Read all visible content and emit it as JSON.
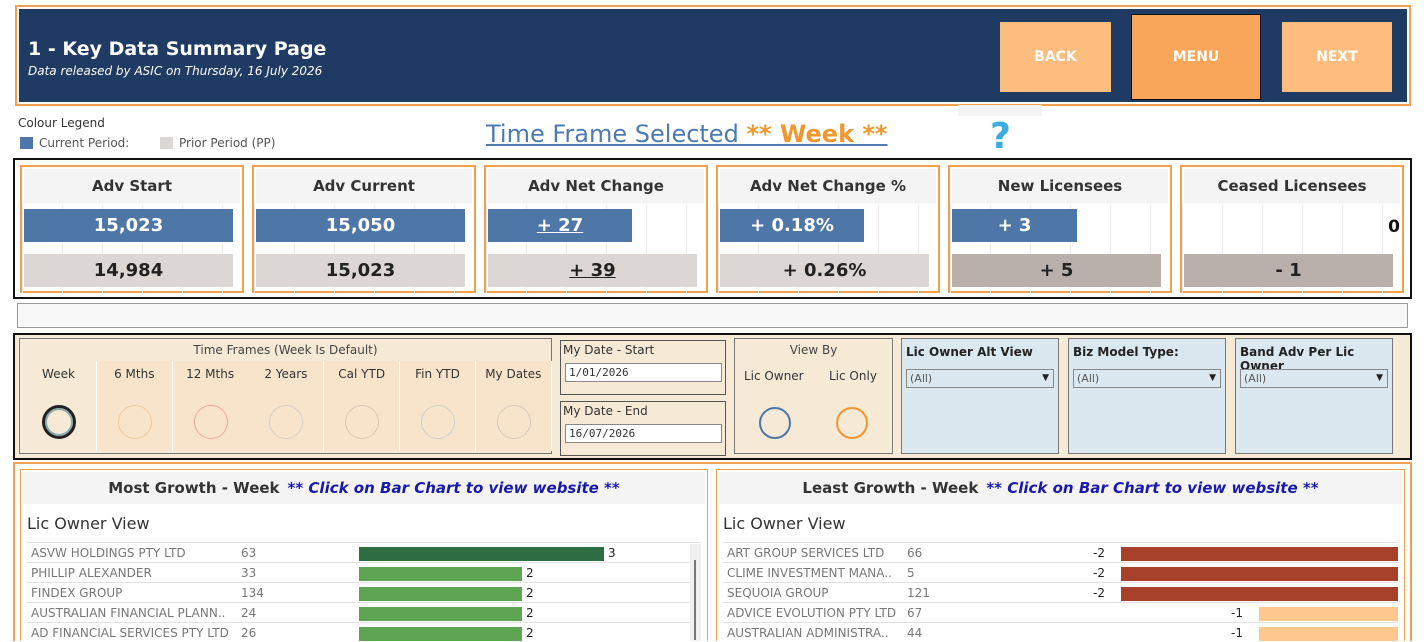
{
  "header": {
    "title": "1 - Key Data Summary Page",
    "subtitle": "Data released by ASIC on Thursday, 16 July 2026",
    "back_label": "BACK",
    "menu_label": "MENU",
    "next_label": "NEXT"
  },
  "legend": {
    "title": "Colour Legend",
    "current_label": "Current Period:",
    "prior_label": "Prior Period (PP)",
    "current_color": "#4e77a8",
    "prior_color": "#dcd6d4"
  },
  "timeframe": {
    "prefix": "Time Frame Selected ",
    "value": "** Week **",
    "help": "?"
  },
  "kpis": [
    {
      "title": "Adv Start",
      "current": "15,023",
      "prior": "14,984",
      "current_fill": 1.0
    },
    {
      "title": "Adv Current",
      "current": "15,050",
      "prior": "15,023",
      "current_fill": 1.0
    },
    {
      "title": "Adv Net Change",
      "current": "+ 27",
      "prior": "+ 39",
      "current_fill": 0.69
    },
    {
      "title": "Adv Net Change %",
      "current": "+ 0.18%",
      "prior": "+ 0.26%",
      "current_fill": 0.69
    },
    {
      "title": "New Licensees",
      "current": "+ 3",
      "prior": "+ 5",
      "current_fill": 0.6
    },
    {
      "title": "Ceased Licensees",
      "current": "0",
      "prior": "- 1",
      "current_fill": 0
    }
  ],
  "filters": {
    "timeframes_title": "Time Frames (Week Is Default)",
    "timeframes": [
      "Week",
      "6 Mths",
      "12 Mths",
      "2 Years",
      "Cal YTD",
      "Fin YTD",
      "My Dates"
    ],
    "date_start_label": "My Date - Start",
    "date_start_value": "1/01/2026",
    "date_end_label": "My Date - End",
    "date_end_value": "16/07/2026",
    "view_by_title": "View By",
    "view_by_options": [
      "Lic Owner",
      "Lic Only"
    ],
    "dropdowns": [
      {
        "label": "Lic Owner Alt View",
        "value": "(All)"
      },
      {
        "label": "Biz Model Type:",
        "value": "(All)"
      },
      {
        "label": "Band Adv Per Lic Owner",
        "value": "(All)"
      }
    ]
  },
  "most_growth": {
    "title": "Most Growth - Week",
    "hint": "** Click on Bar Chart to view website **",
    "view_label": "Lic Owner View",
    "rows": [
      {
        "name": "ASVW HOLDINGS PTY LTD",
        "count": "63",
        "value": 3
      },
      {
        "name": "PHILLIP  ALEXANDER",
        "count": "33",
        "value": 2
      },
      {
        "name": "FINDEX GROUP",
        "count": "134",
        "value": 2
      },
      {
        "name": "AUSTRALIAN FINANCIAL PLANN..",
        "count": "24",
        "value": 2
      },
      {
        "name": "AD FINANCIAL SERVICES PTY LTD",
        "count": "26",
        "value": 2
      }
    ]
  },
  "least_growth": {
    "title": "Least Growth - Week",
    "hint": "** Click on Bar Chart to view website **",
    "view_label": "Lic Owner View",
    "rows": [
      {
        "name": "ART GROUP SERVICES LTD",
        "count": "66",
        "value": -2
      },
      {
        "name": "CLIME INVESTMENT MANA..",
        "count": "5",
        "value": -2
      },
      {
        "name": "SEQUOIA GROUP",
        "count": "121",
        "value": -2
      },
      {
        "name": "ADVICE EVOLUTION PTY LTD",
        "count": "67",
        "value": -1
      },
      {
        "name": "AUSTRALIAN ADMINISTRA..",
        "count": "44",
        "value": -1
      }
    ]
  }
}
